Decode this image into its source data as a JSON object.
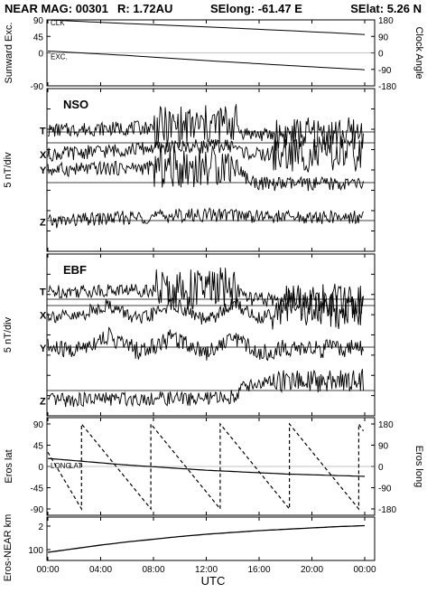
{
  "header": {
    "title": "NEAR MAG: 00301",
    "radius": "R: 1.72AU",
    "selong": "SElong: -61.47 E",
    "selat": "SElat: 5.26 N"
  },
  "chart_data": [
    {
      "type": "line",
      "panel": "sunward-clock",
      "ylabel_left": "Sunward Exc.",
      "ylabel_right": "Clock Angle",
      "ylim": [
        -90,
        90
      ],
      "ylim_right": [
        -180,
        180
      ],
      "yticks_left": [
        "-90",
        "0",
        "45",
        "90"
      ],
      "yticks_right": [
        "-180",
        "-90",
        "0",
        "90",
        "180"
      ],
      "annotations": [
        "CLK",
        "EXC."
      ],
      "series": [
        {
          "name": "CLK",
          "axis": "left",
          "x": [
            0,
            6,
            12,
            18,
            22,
            24
          ],
          "y": [
            90,
            80,
            71,
            61,
            54,
            50
          ]
        },
        {
          "name": "EXC.",
          "axis": "left",
          "x": [
            0,
            6,
            12,
            18,
            22,
            24
          ],
          "y": [
            5,
            -7,
            -21,
            -34,
            -42,
            -46
          ]
        }
      ]
    },
    {
      "type": "line",
      "panel": "nso",
      "panel_label": "NSO",
      "ylabel_left": "5 nT/div",
      "trace_labels": [
        "T",
        "X",
        "Y",
        "Z"
      ],
      "series": [
        {
          "name": "T",
          "x": [
            0,
            3,
            6,
            9,
            12,
            14.2,
            14.6,
            16,
            20,
            23.9
          ],
          "y": [
            0.3,
            0.6,
            0.8,
            1.0,
            1.3,
            2.1,
            0.0,
            -0.6,
            -0.4,
            -0.4
          ]
        },
        {
          "name": "X",
          "x": [
            0,
            3,
            6,
            9,
            12,
            14.2,
            14.6,
            16,
            20,
            23.9
          ],
          "y": [
            -2.5,
            -2.0,
            -1.4,
            -1.0,
            -0.7,
            -0.6,
            -1.8,
            -2.6,
            -2.4,
            -2.5
          ]
        },
        {
          "name": "Y",
          "x": [
            0,
            3,
            6,
            9,
            12,
            14.2,
            15.2,
            16.5,
            20,
            23.9
          ],
          "y": [
            2.7,
            2.9,
            3.1,
            3.2,
            3.4,
            4.1,
            0.4,
            -0.3,
            -0.3,
            -0.3
          ]
        },
        {
          "name": "Z",
          "x": [
            0,
            3,
            6,
            9,
            12,
            14,
            16,
            20,
            23.9
          ],
          "y": [
            -0.3,
            0.2,
            0.6,
            1.0,
            1.2,
            1.3,
            0.9,
            0.6,
            0.8
          ]
        }
      ]
    },
    {
      "type": "line",
      "panel": "ebf",
      "panel_label": "EBF",
      "ylabel_left": "5 nT/div",
      "trace_labels": [
        "T",
        "X",
        "Y",
        "Z"
      ],
      "series": [
        {
          "name": "T",
          "x": [
            0,
            3,
            6,
            9,
            12,
            14.2,
            15,
            17,
            20,
            23.9
          ],
          "y": [
            1.6,
            1.8,
            2.0,
            2.0,
            2.2,
            2.6,
            0.2,
            -0.2,
            -0.2,
            -0.2
          ]
        },
        {
          "name": "X",
          "x": [
            0,
            2,
            4.5,
            7,
            9.5,
            12,
            14.2,
            16,
            18,
            20,
            23.9
          ],
          "y": [
            -2.0,
            -2.6,
            0.2,
            -3.2,
            0.4,
            -3.4,
            0.4,
            -2.8,
            0.2,
            -1.2,
            -0.8
          ]
        },
        {
          "name": "Y",
          "x": [
            0,
            2,
            4.5,
            7,
            9.5,
            12,
            14.2,
            16,
            18,
            20,
            23.9
          ],
          "y": [
            -0.2,
            -0.8,
            2.4,
            -1.0,
            2.2,
            -1.0,
            2.2,
            -1.4,
            -0.2,
            -0.4,
            -0.4
          ]
        },
        {
          "name": "Z",
          "x": [
            0,
            3,
            6,
            9,
            12,
            14,
            15,
            17,
            20,
            23.9
          ],
          "y": [
            -2.2,
            -1.9,
            -1.7,
            -1.7,
            -1.8,
            -1.3,
            1.1,
            1.8,
            2.0,
            2.4
          ]
        }
      ]
    },
    {
      "type": "line",
      "panel": "eros-lat-long",
      "ylabel_left": "Eros lat",
      "ylabel_right": "Eros long",
      "ylim": [
        -90,
        90
      ],
      "ylim_right": [
        -180,
        180
      ],
      "yticks_left": [
        "-90",
        "-45",
        "0",
        "45",
        "90"
      ],
      "yticks_right": [
        "-180",
        "-90",
        "0",
        "90",
        "180"
      ],
      "annotations": [
        "LONG",
        "LAT"
      ],
      "series": [
        {
          "name": "LAT",
          "axis": "left",
          "x": [
            0,
            6,
            12,
            18,
            24
          ],
          "y": [
            17,
            3,
            -8,
            -16,
            -21
          ]
        },
        {
          "name": "LONG",
          "axis": "right",
          "style": "dashed",
          "x": [
            0,
            2.55,
            2.55,
            7.8,
            7.8,
            13.05,
            13.05,
            18.3,
            18.3,
            23.55,
            23.55,
            23.9
          ],
          "y": [
            60,
            -180,
            180,
            -180,
            180,
            -180,
            180,
            -180,
            180,
            -180,
            180,
            150
          ]
        }
      ]
    },
    {
      "type": "line",
      "panel": "eros-near-range",
      "ylabel_left": "Eros-NEAR km",
      "yscale": "log",
      "yticks_left": [
        "100",
        "2"
      ],
      "series": [
        {
          "name": "range",
          "x": [
            0,
            2,
            4,
            6,
            8,
            10,
            12,
            14,
            16,
            18,
            20,
            22,
            24
          ],
          "y": [
            40,
            48,
            56,
            63,
            69,
            75,
            80,
            84,
            88,
            91,
            94,
            97,
            99
          ]
        }
      ]
    }
  ],
  "xaxis": {
    "label": "UTC",
    "ticks": [
      "00:00",
      "04:00",
      "08:00",
      "12:00",
      "16:00",
      "20:00",
      "00:00"
    ],
    "xlim": [
      0,
      24
    ]
  },
  "colors": {
    "ink": "#000000",
    "grid": "#9a9a9a",
    "background": "#ffffff"
  }
}
